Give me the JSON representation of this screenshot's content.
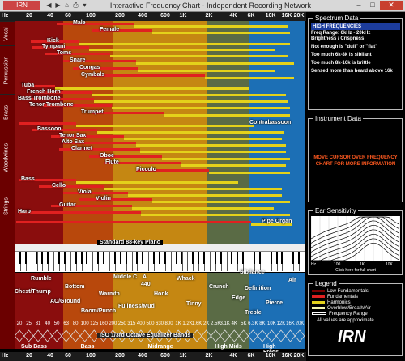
{
  "window": {
    "app_button": "IRN",
    "title": "Interactive Frequency Chart - Independent Recording Network",
    "controls": [
      "–",
      "□",
      "✕"
    ]
  },
  "colors": {
    "fundamental": "#e02020",
    "harmonic": "#e4d21a",
    "low_fundamental": "#7a0000",
    "accent_text": "#ff5a20"
  },
  "freq_scale": {
    "top_labels": [
      "Hz",
      "20",
      "40",
      "60",
      "100",
      "200",
      "400",
      "600",
      "1K",
      "2K",
      "4K",
      "6K",
      "10K",
      "16K",
      "20K"
    ],
    "bottom_labels": [
      "Hz",
      "20",
      "40",
      "60",
      "100",
      "200",
      "400",
      "600",
      "1K",
      "2K",
      "4K",
      "6K",
      "10K",
      "16K",
      "20K"
    ]
  },
  "categories": [
    "Vocal",
    "Percussion",
    "Brass",
    "Woodwinds",
    "Strings"
  ],
  "rows": [
    {
      "label": "Male"
    },
    {
      "label": "Female"
    },
    {
      "label": "Kick"
    },
    {
      "label": "Tympani"
    },
    {
      "label": "Toms"
    },
    {
      "label": "Snare"
    },
    {
      "label": "Congas"
    },
    {
      "label": "Cymbals"
    },
    {
      "label": "Tuba"
    },
    {
      "label": "French Horn"
    },
    {
      "label": "Bass Trombone"
    },
    {
      "label": "Tenor Trombone"
    },
    {
      "label": "Trumpet"
    },
    {
      "label": "Contrabassoon"
    },
    {
      "label": "Bassoon"
    },
    {
      "label": "Tenor Sax"
    },
    {
      "label": "Alto Sax"
    },
    {
      "label": "Clarinet"
    },
    {
      "label": "Oboe"
    },
    {
      "label": "Flute"
    },
    {
      "label": "Piccolo"
    },
    {
      "label": "Bass"
    },
    {
      "label": "Cello"
    },
    {
      "label": "Viola"
    },
    {
      "label": "Violin"
    },
    {
      "label": "Guitar"
    },
    {
      "label": "Harp"
    },
    {
      "label": "Pipe Organ"
    }
  ],
  "piano": {
    "label": "Standard 88-key Piano"
  },
  "descriptors": [
    "Rumble",
    "Chest/Thump",
    "Bottom",
    "AC/Ground",
    "Middle C",
    "A",
    "440",
    "Whack",
    "Warmth",
    "Honk",
    "Crunch",
    "Sibilance",
    "Definition",
    "Edge",
    "Air",
    "Fullness/Mud",
    "Tinny",
    "Boom/Punch",
    "Pierce",
    "Treble"
  ],
  "octave": {
    "numbers": [
      "20",
      "25",
      "31",
      "40",
      "50",
      "63",
      "80",
      "100",
      "125",
      "160",
      "200",
      "250",
      "315",
      "400",
      "500",
      "630",
      "800",
      "1K",
      "1.2K",
      "1.6K",
      "2K",
      "2.5K",
      "3.1K",
      "4K",
      "5K",
      "6.3K",
      "8K",
      "10K",
      "12K",
      "16K",
      "20K"
    ],
    "label": "ISO 1/3rd Octave Equalizer Bands"
  },
  "regions": [
    "Sub Bass",
    "Bass",
    "Midrange",
    "High Mids",
    "High Freqs"
  ],
  "spectrum": {
    "header": "Spectrum Data",
    "title": "HIGH FREQUENCIES",
    "range": "Freq Range:  6kHz - 20kHz",
    "subtitle": "Brightness / Crispness",
    "lines": [
      "Not enough is \"dull\" or \"flat\"",
      "Too much 6k-8k is sibilant",
      "Too much 8k-16k is brittle",
      "Sensed more than heard above 16k"
    ]
  },
  "instrument": {
    "header": "Instrument Data",
    "message": "MOVE CURSOR OVER FREQUENCY CHART FOR MORE INFORMATION"
  },
  "ear": {
    "header": "Ear Sensitivity",
    "axis": [
      "Hz",
      "100",
      "1K",
      "10K"
    ],
    "link": "Click here for full chart"
  },
  "legend": {
    "header": "Legend",
    "items": [
      "Low Fundamentals",
      "Fundamentals",
      "Harmonics",
      "Overblow/Breath/Air",
      "Frequency Range"
    ],
    "note": "All values are approximate",
    "logo": "IRN"
  }
}
